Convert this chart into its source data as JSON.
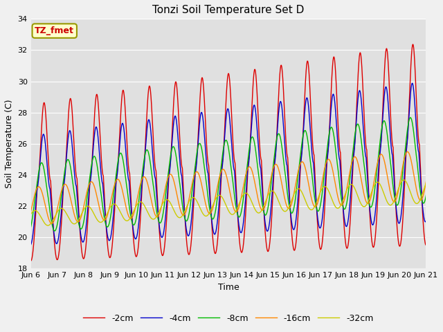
{
  "title": "Tonzi Soil Temperature Set D",
  "ylabel": "Soil Temperature (C)",
  "xlabel": "Time",
  "annotation": "TZ_fmet",
  "ylim": [
    18,
    34
  ],
  "yticks": [
    18,
    20,
    22,
    24,
    26,
    28,
    30,
    32,
    34
  ],
  "colors": {
    "-2cm": "#dd0000",
    "-4cm": "#0000cc",
    "-8cm": "#00bb00",
    "-16cm": "#ff8800",
    "-32cm": "#cccc00"
  },
  "legend_labels": [
    "-2cm",
    "-4cm",
    "-8cm",
    "-16cm",
    "-32cm"
  ],
  "plot_bg_color": "#e0e0e0",
  "fig_bg_color": "#f0f0f0",
  "grid_color": "#ffffff",
  "figsize": [
    6.4,
    4.8
  ],
  "dpi": 100
}
